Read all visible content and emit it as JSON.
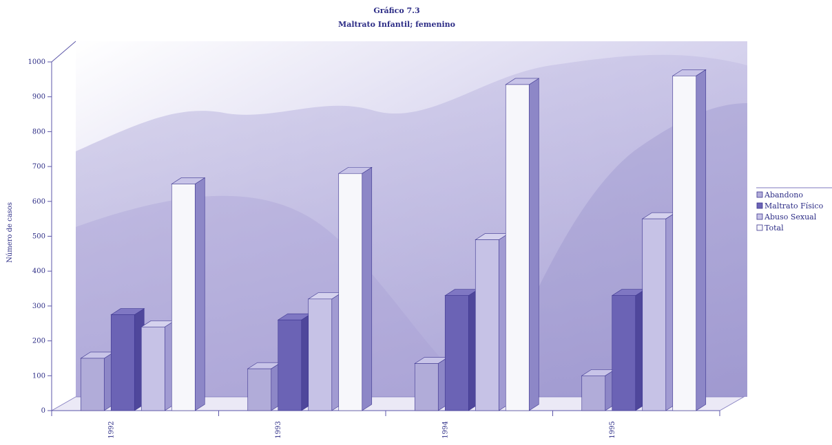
{
  "chart_data": {
    "type": "bar",
    "title": "Gráfico 7.3",
    "subtitle": "Maltrato Infantil; femenino",
    "ylabel": "Número de casos",
    "xlabel": "",
    "ylim": [
      0,
      1000
    ],
    "yticks": [
      0,
      100,
      200,
      300,
      400,
      500,
      600,
      700,
      800,
      900,
      1000
    ],
    "categories": [
      "1992",
      "1993",
      "1994",
      "1995"
    ],
    "series": [
      {
        "name": "Abandono",
        "values": [
          150,
          120,
          135,
          100
        ],
        "color": "#b1acd9"
      },
      {
        "name": "Maltrato Físico",
        "values": [
          275,
          260,
          330,
          330
        ],
        "color": "#6b63b5"
      },
      {
        "name": "Abuso Sexual",
        "values": [
          240,
          320,
          490,
          550
        ],
        "color": "#c6c2e6"
      },
      {
        "name": "Total",
        "values": [
          650,
          680,
          935,
          960
        ],
        "color": "#f7f7fb"
      }
    ],
    "grid": false,
    "legend": "right",
    "style": "3d-column"
  }
}
